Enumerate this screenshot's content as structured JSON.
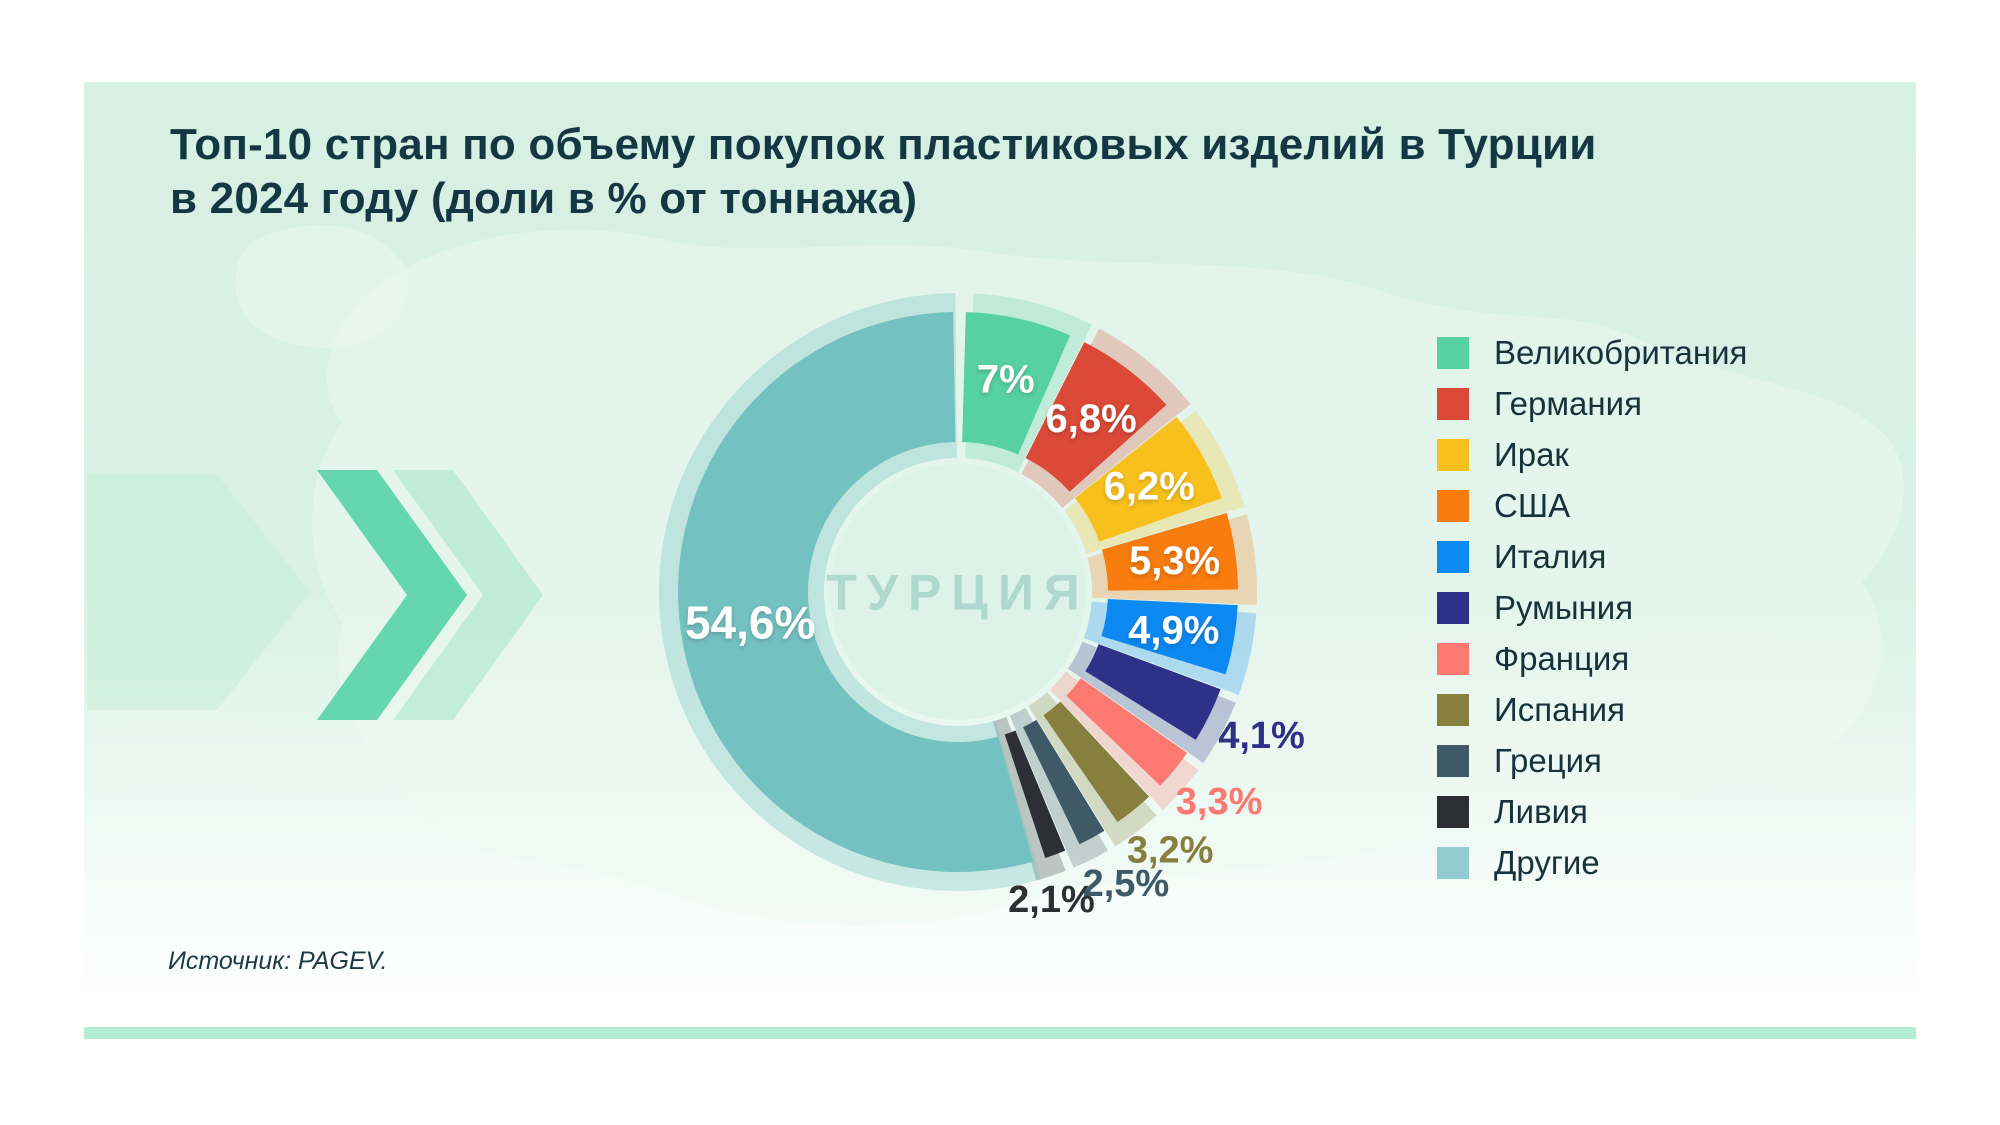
{
  "title": {
    "line1": "Топ-10 стран по объему покупок пластиковых изделий в Турции",
    "line2": "в 2024 году (доли в % от тоннажа)"
  },
  "source": "Источник: PAGEV.",
  "center_label": "ТУРЦИЯ",
  "style_colors": {
    "accent_bar": "#b5ecd6",
    "panel_bg_top": "#d7f0e4",
    "panel_bg_bottom": "#ffffff",
    "title_color": "#153744",
    "center_label_color": "#afd8cf",
    "map_color": "#eef9f2",
    "chevron_bold": "#4fd0a4",
    "chevron_faint": "#a5e4c9",
    "arrow_big": "#c6ecd9",
    "legend_text": "#18323c",
    "source_text": "#1b3a47",
    "inside_label_color": "#ffffff"
  },
  "chart_data": {
    "type": "pie",
    "subtype": "donut-exploded",
    "title": "Топ-10 стран по объему покупок пластиковых изделий в Турции в 2024 году (доли в % от тоннажа)",
    "units": "% от тоннажа",
    "legend_position": "right",
    "center_text": "ТУРЦИЯ",
    "segments": [
      {
        "label": "Великобритания",
        "value": 7.0,
        "display": "7%",
        "color": "#57d0a4",
        "label_placement": "inside"
      },
      {
        "label": "Германия",
        "value": 6.8,
        "display": "6,8%",
        "color": "#db4937",
        "label_placement": "inside"
      },
      {
        "label": "Ирак",
        "value": 6.2,
        "display": "6,2%",
        "color": "#f8c01c",
        "label_placement": "inside"
      },
      {
        "label": "США",
        "value": 5.3,
        "display": "5,3%",
        "color": "#f87c0e",
        "label_placement": "inside"
      },
      {
        "label": "Италия",
        "value": 4.9,
        "display": "4,9%",
        "color": "#0d89f2",
        "label_placement": "inside"
      },
      {
        "label": "Румыния",
        "value": 4.1,
        "display": "4,1%",
        "color": "#2e3188",
        "label_placement": "outside"
      },
      {
        "label": "Франция",
        "value": 3.3,
        "display": "3,3%",
        "color": "#fb7971",
        "label_placement": "outside"
      },
      {
        "label": "Испания",
        "value": 3.2,
        "display": "3,2%",
        "color": "#867f3d",
        "label_placement": "outside"
      },
      {
        "label": "Греция",
        "value": 2.5,
        "display": "2,5%",
        "color": "#3f5a66",
        "label_placement": "outside"
      },
      {
        "label": "Ливия",
        "value": 2.1,
        "display": "2,1%",
        "color": "#2c2f33",
        "label_placement": "outside"
      },
      {
        "label": "Другие",
        "value": 54.6,
        "display": "54,6%",
        "color": "#74c1c1",
        "legend_color": "#92ccd0",
        "label_placement": "inside"
      }
    ]
  }
}
